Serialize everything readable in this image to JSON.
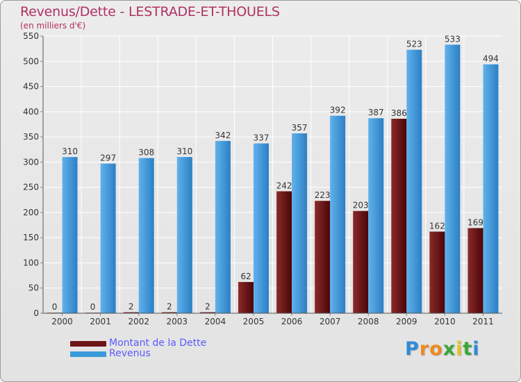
{
  "chart_data": {
    "type": "bar",
    "title": "Revenus/Dette - LESTRADE-ET-THOUELS",
    "subtitle": "(en milliers d'€)",
    "categories": [
      "2000",
      "2001",
      "2002",
      "2003",
      "2004",
      "2005",
      "2006",
      "2007",
      "2008",
      "2009",
      "2010",
      "2011"
    ],
    "series": [
      {
        "name": "Montant de la Dette",
        "color": "#6e1416",
        "values": [
          0,
          0,
          2,
          2,
          2,
          62,
          242,
          223,
          203,
          386,
          162,
          169
        ]
      },
      {
        "name": "Revenus",
        "color": "#3a9ad9",
        "values": [
          310,
          297,
          308,
          310,
          342,
          337,
          357,
          392,
          387,
          523,
          533,
          494
        ]
      }
    ],
    "ylim": [
      0,
      550
    ],
    "yticks": [
      0,
      50,
      100,
      150,
      200,
      250,
      300,
      350,
      400,
      450,
      500,
      550
    ],
    "grid": true,
    "legend_position": "bottom-left"
  },
  "logo": {
    "letters": [
      "P",
      "r",
      "o",
      "x",
      "i",
      "t",
      "i"
    ],
    "colors": [
      "#2e8bd8",
      "#f08a1c",
      "#f08a1c",
      "#3aa63a",
      "#e8c41c",
      "#3aa63a",
      "#2e8bd8"
    ]
  }
}
